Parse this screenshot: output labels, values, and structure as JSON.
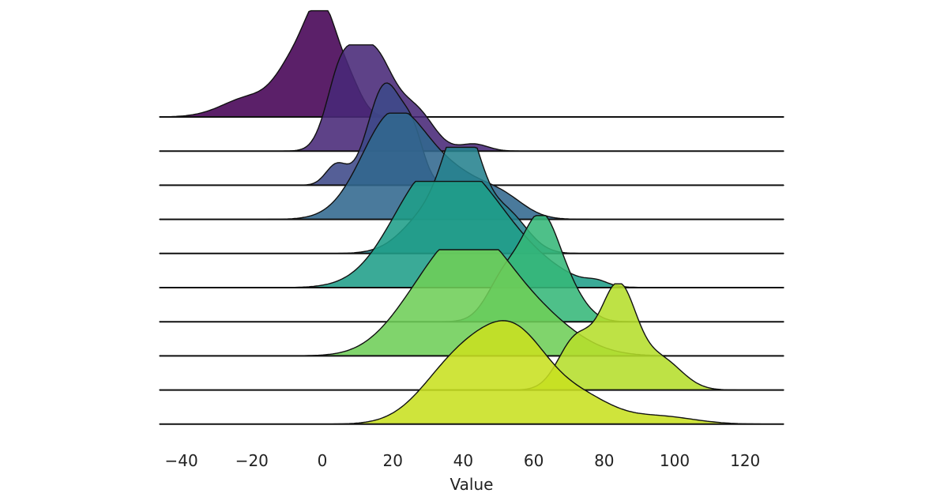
{
  "chart_data": {
    "type": "ridgeline",
    "xlabel": "Value",
    "x_ticks": [
      -40,
      -20,
      0,
      20,
      40,
      60,
      80,
      100,
      120
    ],
    "xlim": [
      -45,
      130
    ],
    "grid": false,
    "legend": "none",
    "colors": [
      "#440154",
      "#482878",
      "#3e4989",
      "#31688e",
      "#26828e",
      "#1f9e89",
      "#35b779",
      "#6ece58",
      "#b5de2b",
      "#c8e020"
    ],
    "series": [
      {
        "peaks": [
          [
            -20,
            8,
            0.2
          ],
          [
            -8,
            5,
            0.45
          ],
          [
            0,
            4.5,
            1.0
          ],
          [
            8,
            3.5,
            0.25
          ]
        ],
        "density": []
      },
      {
        "peaks": [
          [
            5,
            4,
            0.6
          ],
          [
            14,
            6,
            1.0
          ],
          [
            27,
            5,
            0.35
          ],
          [
            43,
            4,
            0.07
          ]
        ],
        "density": []
      },
      {
        "peaks": [
          [
            4,
            3,
            0.2
          ],
          [
            18,
            5,
            1.0
          ],
          [
            26,
            3,
            0.35
          ]
        ],
        "density": []
      },
      {
        "peaks": [
          [
            20,
            9,
            1.0
          ],
          [
            38,
            10,
            0.4
          ],
          [
            52,
            6,
            0.12
          ]
        ],
        "density": []
      },
      {
        "peaks": [
          [
            32,
            8,
            0.45
          ],
          [
            40,
            5,
            1.0
          ],
          [
            52,
            6,
            0.4
          ]
        ],
        "density": []
      },
      {
        "peaks": [
          [
            30,
            11,
            1.0
          ],
          [
            45,
            10,
            0.6
          ],
          [
            60,
            10,
            0.2
          ],
          [
            78,
            3,
            0.04
          ]
        ],
        "density": []
      },
      {
        "peaks": [
          [
            52,
            5,
            0.45
          ],
          [
            62,
            5,
            0.95
          ],
          [
            70,
            5,
            0.25
          ]
        ],
        "density": []
      },
      {
        "peaks": [
          [
            28,
            10,
            0.45
          ],
          [
            42,
            10,
            0.9
          ],
          [
            58,
            12,
            0.45
          ]
        ],
        "density": []
      },
      {
        "peaks": [
          [
            72,
            5,
            0.5
          ],
          [
            84,
            5,
            1.0
          ],
          [
            96,
            6,
            0.3
          ]
        ],
        "density": []
      },
      {
        "peaks": [
          [
            38,
            10,
            0.55
          ],
          [
            55,
            10,
            0.85
          ],
          [
            75,
            8,
            0.2
          ],
          [
            95,
            10,
            0.08
          ]
        ],
        "density": []
      }
    ]
  }
}
